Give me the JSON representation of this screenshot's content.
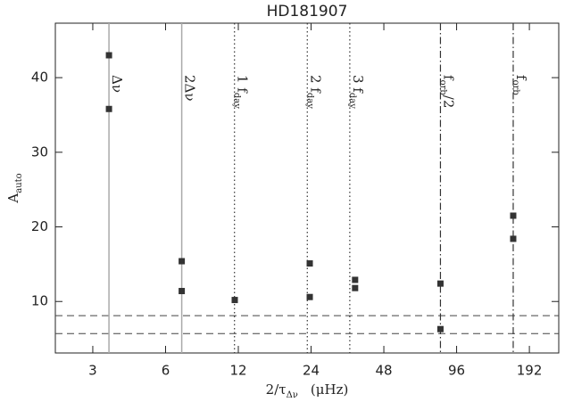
{
  "chart_data": {
    "type": "scatter",
    "title": "HD181907",
    "x_label": {
      "text": "2/τ",
      "sub": "Δν",
      "unit": "(μHz)"
    },
    "y_label": {
      "text": "A",
      "sub": "auto"
    },
    "xscale": "log2",
    "xlim": [
      2.1,
      254
    ],
    "ylim": [
      3.1,
      47.3
    ],
    "xticks": [
      3,
      6,
      12,
      24,
      48,
      96,
      192
    ],
    "yticks": [
      10,
      20,
      30,
      40
    ],
    "color": "#333333",
    "x": [
      3.5,
      3.5,
      7.0,
      7.0,
      11.6,
      23.7,
      23.7,
      36.5,
      36.5,
      82.3,
      82.3,
      164.6,
      164.6
    ],
    "y": [
      43.0,
      35.8,
      15.4,
      11.4,
      10.2,
      15.1,
      10.6,
      12.9,
      11.8,
      12.4,
      6.3,
      21.5,
      18.4
    ],
    "vlines": [
      {
        "x": 3.5,
        "style": "solid",
        "label": {
          "text": "Δν"
        }
      },
      {
        "x": 7.0,
        "style": "solid",
        "label": {
          "text": "2Δν"
        }
      },
      {
        "x": 11.57,
        "style": "dotted",
        "label": {
          "text": "1 f",
          "sub": "day"
        }
      },
      {
        "x": 23.15,
        "style": "dotted",
        "label": {
          "text": "2 f",
          "sub": "day"
        }
      },
      {
        "x": 34.7,
        "style": "dotted",
        "label": {
          "text": "3 f",
          "sub": "day"
        }
      },
      {
        "x": 82.3,
        "style": "dashdot",
        "label": {
          "text": "f",
          "sub": "orb",
          "tail": "/2"
        }
      },
      {
        "x": 164.6,
        "style": "dashdot",
        "label": {
          "text": "f",
          "sub": "orb"
        }
      }
    ],
    "hlines": [
      8.1,
      5.7
    ]
  }
}
